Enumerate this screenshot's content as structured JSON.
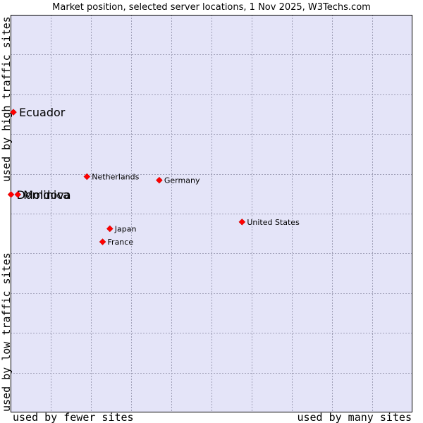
{
  "chart_data": {
    "type": "scatter",
    "title": "Market position, selected server locations, 1 Nov 2025, W3Techs.com",
    "xlabel_left": "used by fewer sites",
    "xlabel_right": "used by many sites",
    "ylabel_bottom": "used by low traffic sites",
    "ylabel_top": "used by high traffic sites",
    "xlim": [
      0,
      100
    ],
    "ylim": [
      0,
      100
    ],
    "grid": true,
    "colors": {
      "plot_bg": "#e4e4f8",
      "border": "#000000",
      "marker": "#ff0000",
      "marker_stroke": "#b00000"
    },
    "points": [
      {
        "name": "Ecuador",
        "x": 0.7,
        "y": 75.5,
        "emphasis": true
      },
      {
        "name": "Dominica",
        "x": 0.1,
        "y": 54.8,
        "emphasis": true
      },
      {
        "name": "Moldova",
        "x": 1.8,
        "y": 54.8,
        "emphasis": true
      },
      {
        "name": "Netherlands",
        "x": 19.0,
        "y": 59.3,
        "emphasis": false
      },
      {
        "name": "Germany",
        "x": 37.0,
        "y": 58.4,
        "emphasis": false
      },
      {
        "name": "United States",
        "x": 57.6,
        "y": 47.9,
        "emphasis": false
      },
      {
        "name": "Japan",
        "x": 24.7,
        "y": 46.2,
        "emphasis": false
      },
      {
        "name": "France",
        "x": 22.9,
        "y": 42.9,
        "emphasis": false
      }
    ]
  }
}
